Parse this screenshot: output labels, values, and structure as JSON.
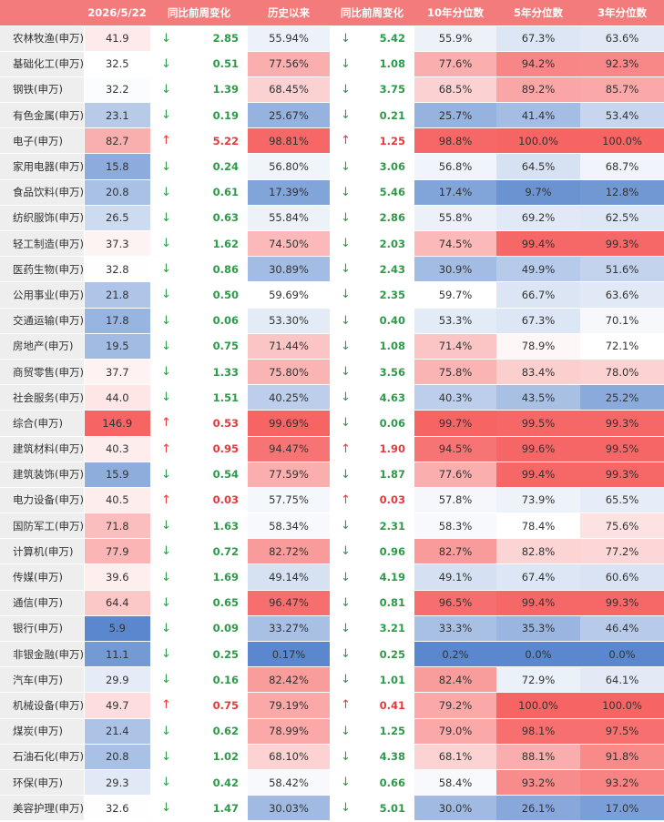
{
  "header": [
    "2026/5/22",
    "同比前周变化",
    "历史以来",
    "同比前周变化",
    "10年分位数",
    "5年分位数",
    "3年分位数"
  ],
  "rows": [
    [
      "农林牧渔(申万)",
      "41.9",
      "↓",
      "2.85",
      "55.94%",
      "↓",
      "5.42",
      "55.9%",
      "67.3%",
      "63.6%"
    ],
    [
      "基础化工(申万)",
      "32.5",
      "↓",
      "0.51",
      "77.56%",
      "↓",
      "1.08",
      "77.6%",
      "94.2%",
      "92.3%"
    ],
    [
      "钢铁(申万)",
      "32.2",
      "↓",
      "1.39",
      "68.45%",
      "↓",
      "3.75",
      "68.5%",
      "89.2%",
      "85.7%"
    ],
    [
      "有色金属(申万)",
      "23.1",
      "↓",
      "0.19",
      "25.67%",
      "↓",
      "0.21",
      "25.7%",
      "41.4%",
      "53.4%"
    ],
    [
      "电子(申万)",
      "82.7",
      "↑",
      "5.22",
      "98.81%",
      "↑",
      "1.25",
      "98.8%",
      "100.0%",
      "100.0%"
    ],
    [
      "家用电器(申万)",
      "15.8",
      "↓",
      "0.24",
      "56.80%",
      "↓",
      "3.06",
      "56.8%",
      "64.5%",
      "68.7%"
    ],
    [
      "食品饮料(申万)",
      "20.8",
      "↓",
      "0.61",
      "17.39%",
      "↓",
      "5.46",
      "17.4%",
      "9.7%",
      "12.8%"
    ],
    [
      "纺织服饰(申万)",
      "26.5",
      "↓",
      "0.63",
      "55.84%",
      "↓",
      "2.86",
      "55.8%",
      "69.2%",
      "62.5%"
    ],
    [
      "轻工制造(申万)",
      "37.3",
      "↓",
      "1.62",
      "74.50%",
      "↓",
      "2.03",
      "74.5%",
      "99.4%",
      "99.3%"
    ],
    [
      "医药生物(申万)",
      "32.8",
      "↓",
      "0.86",
      "30.89%",
      "↓",
      "2.43",
      "30.9%",
      "49.9%",
      "51.6%"
    ],
    [
      "公用事业(申万)",
      "21.8",
      "↓",
      "0.50",
      "59.69%",
      "↓",
      "2.35",
      "59.7%",
      "66.7%",
      "63.6%"
    ],
    [
      "交通运输(申万)",
      "17.8",
      "↓",
      "0.06",
      "53.30%",
      "↓",
      "0.40",
      "53.3%",
      "67.3%",
      "70.1%"
    ],
    [
      "房地产(申万)",
      "19.5",
      "↓",
      "0.75",
      "71.44%",
      "↓",
      "1.08",
      "71.4%",
      "78.9%",
      "72.1%"
    ],
    [
      "商贸零售(申万)",
      "37.7",
      "↓",
      "1.33",
      "75.80%",
      "↓",
      "3.56",
      "75.8%",
      "83.4%",
      "78.0%"
    ],
    [
      "社会服务(申万)",
      "44.0",
      "↓",
      "1.51",
      "40.25%",
      "↓",
      "4.63",
      "40.3%",
      "43.5%",
      "25.2%"
    ],
    [
      "综合(申万)",
      "146.9",
      "↑",
      "0.53",
      "99.69%",
      "↓",
      "0.06",
      "99.7%",
      "99.5%",
      "99.3%"
    ],
    [
      "建筑材料(申万)",
      "40.3",
      "↑",
      "0.95",
      "94.47%",
      "↑",
      "1.90",
      "94.5%",
      "99.6%",
      "99.5%"
    ],
    [
      "建筑装饰(申万)",
      "15.9",
      "↓",
      "0.54",
      "77.59%",
      "↓",
      "1.87",
      "77.6%",
      "99.4%",
      "99.3%"
    ],
    [
      "电力设备(申万)",
      "40.5",
      "↑",
      "0.03",
      "57.75%",
      "↑",
      "0.03",
      "57.8%",
      "73.9%",
      "65.5%"
    ],
    [
      "国防军工(申万)",
      "71.8",
      "↓",
      "1.63",
      "58.34%",
      "↓",
      "2.31",
      "58.3%",
      "78.4%",
      "75.6%"
    ],
    [
      "计算机(申万)",
      "77.9",
      "↓",
      "0.72",
      "82.72%",
      "↓",
      "0.96",
      "82.7%",
      "82.8%",
      "77.2%"
    ],
    [
      "传媒(申万)",
      "39.6",
      "↓",
      "1.69",
      "49.14%",
      "↓",
      "4.19",
      "49.1%",
      "67.4%",
      "60.6%"
    ],
    [
      "通信(申万)",
      "64.4",
      "↓",
      "0.65",
      "96.47%",
      "↓",
      "0.81",
      "96.5%",
      "99.4%",
      "99.3%"
    ],
    [
      "银行(申万)",
      "5.9",
      "↓",
      "0.09",
      "33.27%",
      "↓",
      "3.21",
      "33.3%",
      "35.3%",
      "46.4%"
    ],
    [
      "非银金融(申万)",
      "11.1",
      "↓",
      "0.25",
      "0.17%",
      "↓",
      "0.25",
      "0.2%",
      "0.0%",
      "0.0%"
    ],
    [
      "汽车(申万)",
      "29.9",
      "↓",
      "0.16",
      "82.42%",
      "↓",
      "1.01",
      "82.4%",
      "72.9%",
      "64.1%"
    ],
    [
      "机械设备(申万)",
      "49.7",
      "↑",
      "0.75",
      "79.19%",
      "↑",
      "0.41",
      "79.2%",
      "100.0%",
      "100.0%"
    ],
    [
      "煤炭(申万)",
      "21.4",
      "↓",
      "0.62",
      "78.99%",
      "↓",
      "1.25",
      "79.0%",
      "98.1%",
      "97.5%"
    ],
    [
      "石油石化(申万)",
      "20.8",
      "↓",
      "1.02",
      "68.10%",
      "↓",
      "4.38",
      "68.1%",
      "88.1%",
      "91.8%"
    ],
    [
      "环保(申万)",
      "29.3",
      "↓",
      "0.42",
      "58.42%",
      "↓",
      "0.66",
      "58.4%",
      "93.2%",
      "93.2%"
    ],
    [
      "美容护理(申万)",
      "32.6",
      "↓",
      "1.47",
      "30.03%",
      "↓",
      "5.01",
      "30.0%",
      "26.1%",
      "17.0%"
    ]
  ]
}
